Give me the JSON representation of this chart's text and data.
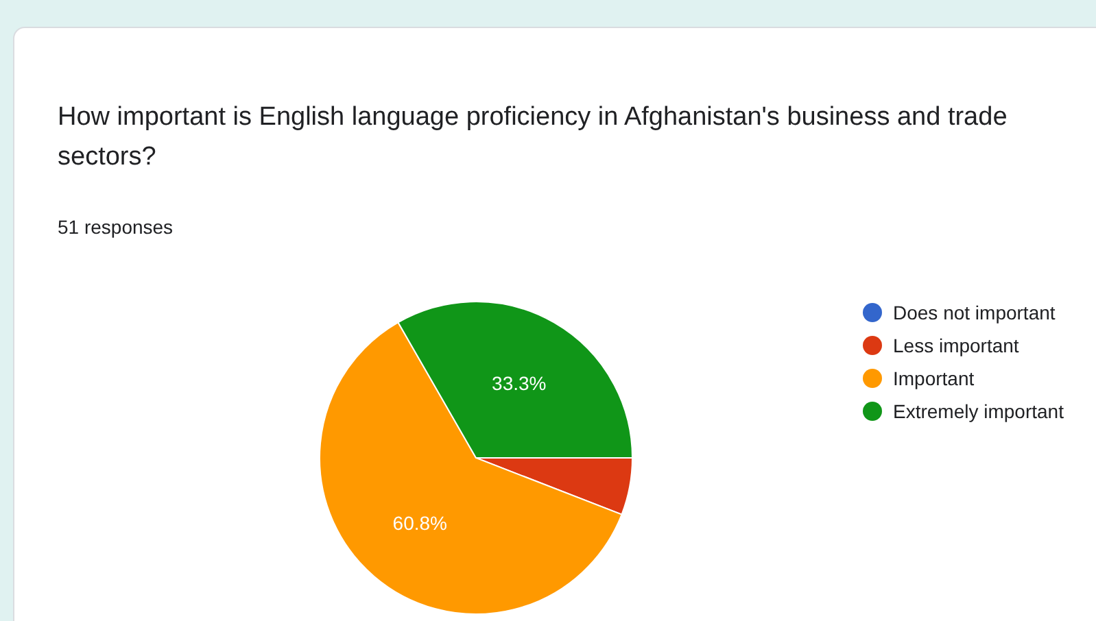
{
  "chart_data": {
    "type": "pie",
    "title": "How important is English language proficiency in Afghanistan's business and trade sectors?",
    "subtitle": "51 responses",
    "categories": [
      "Does not important",
      "Less important",
      "Important",
      "Extremely important"
    ],
    "values": [
      0,
      5.9,
      60.8,
      33.3
    ],
    "colors": [
      "#3366cc",
      "#dc3912",
      "#ff9900",
      "#109618"
    ],
    "value_labels": [
      null,
      null,
      "60.8%",
      "33.3%"
    ],
    "legend": "right"
  }
}
